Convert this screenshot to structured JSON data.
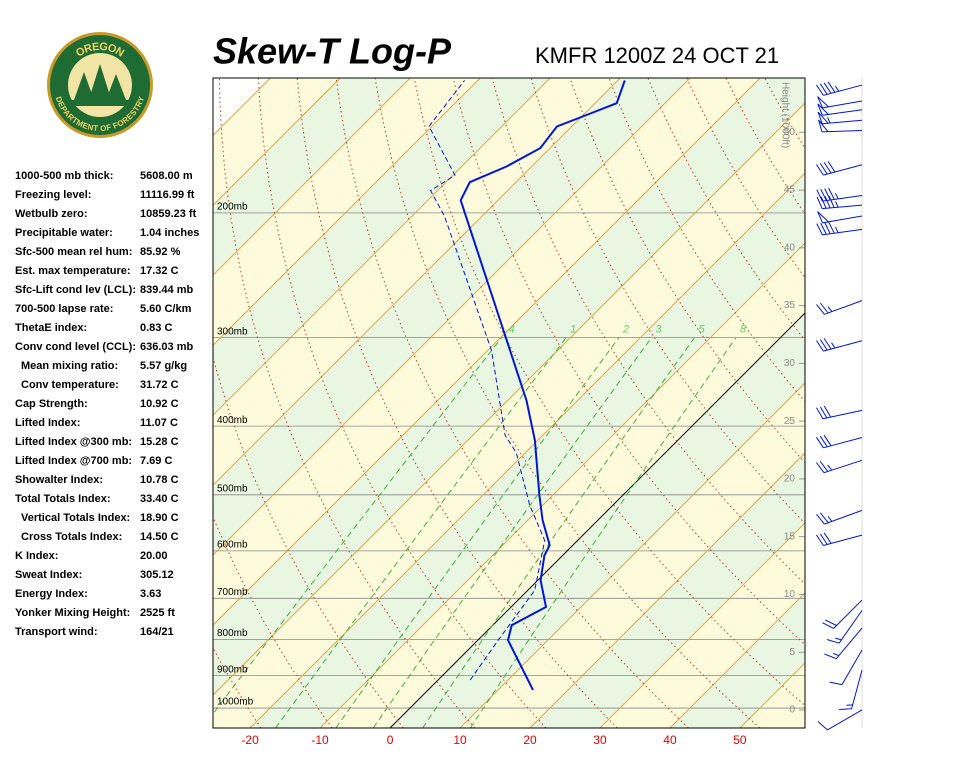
{
  "logo": {
    "top": "OREGON",
    "bottom": "DEPARTMENT OF FORESTRY"
  },
  "stats": [
    [
      "1000-500 mb thick:",
      "5608.00 m"
    ],
    [
      "Freezing level:",
      "11116.99 ft"
    ],
    [
      "Wetbulb zero:",
      "10859.23 ft"
    ],
    [
      "Precipitable water:",
      "1.04 inches"
    ],
    [
      "Sfc-500 mean rel hum:",
      "85.92 %"
    ],
    [
      "Est. max temperature:",
      "17.32 C"
    ],
    [
      "Sfc-Lift cond lev (LCL):",
      "839.44 mb"
    ],
    [
      "700-500 lapse rate:",
      "5.60 C/km"
    ],
    [
      "ThetaE index:",
      "0.83 C"
    ],
    [
      "Conv cond level (CCL):",
      "636.03 mb"
    ],
    [
      "Mean mixing ratio:",
      "5.57 g/kg"
    ],
    [
      "Conv temperature:",
      "31.72 C"
    ],
    [
      "Cap Strength:",
      "10.92 C"
    ],
    [
      "Lifted Index:",
      "11.07 C"
    ],
    [
      "Lifted Index @300 mb:",
      "15.28 C"
    ],
    [
      "Lifted Index @700 mb:",
      "7.69 C"
    ],
    [
      "Showalter Index:",
      "10.78 C"
    ],
    [
      "Total Totals Index:",
      "33.40 C"
    ],
    [
      "Vertical Totals Index:",
      "18.90 C"
    ],
    [
      "Cross Totals Index:",
      "14.50 C"
    ],
    [
      "K Index:",
      "20.00"
    ],
    [
      "Sweat Index:",
      "305.12"
    ],
    [
      "Energy Index:",
      "3.63"
    ],
    [
      "Yonker Mixing Height:",
      "2525 ft"
    ],
    [
      "Transport wind:",
      "164/21"
    ]
  ],
  "chart_data": {
    "type": "skewt",
    "title": "Skew-T Log-P",
    "subtitle": "KMFR 1200Z 24 OCT 21",
    "plim": [
      1067,
      129
    ],
    "xlim": [
      -25.3,
      59.3
    ],
    "xticks": [
      -20,
      -10,
      0,
      10,
      20,
      30,
      40,
      50
    ],
    "pressure_ticks": [
      {
        "value": 200,
        "label": "200mb"
      },
      {
        "value": 300,
        "label": "300mb"
      },
      {
        "value": 400,
        "label": "400mb"
      },
      {
        "value": 500,
        "label": "500mb"
      },
      {
        "value": 600,
        "label": "600mb"
      },
      {
        "value": 700,
        "label": "700mb"
      },
      {
        "value": 800,
        "label": "800mb"
      },
      {
        "value": 900,
        "label": "900mb"
      },
      {
        "value": 1000,
        "label": "1000mb"
      }
    ],
    "isotherms": [
      -110,
      -100,
      -90,
      -80,
      -70,
      -60,
      -50,
      -40,
      -30,
      -20,
      -10,
      0,
      10,
      20,
      30,
      40,
      50,
      60
    ],
    "isotherm_color": "#f0a030",
    "band_colors": [
      "#fdfbdc",
      "#e9f6e1"
    ],
    "dry_adiabats": [
      250,
      260,
      270,
      280,
      290,
      300,
      310,
      320,
      330,
      340,
      350,
      360,
      370,
      380,
      390,
      400,
      410,
      420,
      430,
      440,
      450,
      460,
      470
    ],
    "adiabat_color": "#c04020",
    "mixing_ratios": [
      {
        "value": 0.4,
        "label": ".4"
      },
      1,
      2,
      3,
      5,
      8
    ],
    "mixing_ratio_top": 300,
    "mixing_color": "#40b040",
    "height_label": "Height (1000ft)",
    "height_lim": [
      -1.56,
      54.7
    ],
    "height_ticks": [
      0,
      5,
      10,
      15,
      20,
      25,
      30,
      35,
      40,
      45,
      50
    ],
    "temperature": {
      "color": "#0018d0",
      "pressure": [
        943,
        802,
        764,
        720,
        660,
        609,
        589,
        543,
        501,
        419,
        368,
        192,
        181,
        172,
        162,
        151,
        145,
        140,
        130
      ],
      "values": [
        15,
        4.3,
        2.7,
        5.0,
        0.4,
        -2.6,
        -3.3,
        -7.9,
        -11.9,
        -20.4,
        -27.3,
        -65.3,
        -66.6,
        -63.6,
        -61.4,
        -62.1,
        -59.3,
        -56.9,
        -59
      ]
    },
    "dewpoint": {
      "color": "#0018d0",
      "pressure": [
        913,
        802,
        682,
        580,
        517,
        436,
        412,
        313,
        257,
        202,
        186,
        177,
        151,
        130
      ],
      "values": [
        4.6,
        2.9,
        1.0,
        -4.7,
        -11.9,
        -21.3,
        -25.4,
        -39.4,
        -51.1,
        -65.4,
        -71,
        -69.7,
        -80.4,
        -81.9
      ]
    },
    "winds": {
      "color": "#0018d0",
      "pressure": [
        132,
        139,
        143,
        148,
        153,
        171,
        189,
        195,
        202,
        211,
        266,
        303,
        380,
        415,
        447,
        526,
        570,
        704,
        728,
        771,
        828,
        884,
        1006
      ],
      "direction": [
        255,
        260,
        262,
        265,
        268,
        255,
        262,
        265,
        260,
        262,
        250,
        255,
        258,
        255,
        252,
        250,
        255,
        225,
        215,
        220,
        210,
        195,
        240
      ],
      "speed": [
        45,
        50,
        50,
        55,
        50,
        40,
        45,
        45,
        50,
        45,
        25,
        35,
        30,
        30,
        25,
        25,
        30,
        20,
        15,
        15,
        10,
        15,
        10
      ]
    }
  }
}
